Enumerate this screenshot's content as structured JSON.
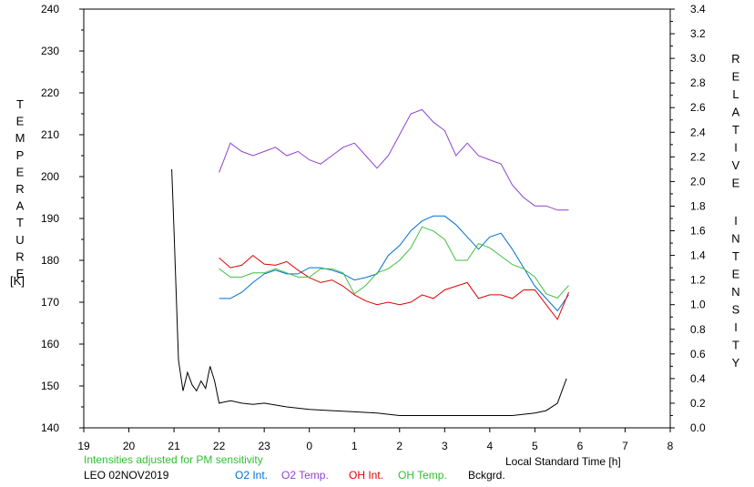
{
  "chart_data": {
    "type": "line",
    "left_axis_label": "TEMPERATURE",
    "left_axis_unit": "[K]",
    "right_axis_label": "RELATIVE INTENSITY",
    "x_axis_label": "Local Standard Time [h]",
    "x_ticks": [
      "19",
      "20",
      "21",
      "22",
      "23",
      "0",
      "1",
      "2",
      "3",
      "4",
      "5",
      "6",
      "7",
      "8"
    ],
    "y_left_ticks": [
      "140",
      "150",
      "160",
      "170",
      "180",
      "190",
      "200",
      "210",
      "220",
      "230",
      "240"
    ],
    "y_right_ticks": [
      "0.0",
      "0.2",
      "0.4",
      "0.6",
      "0.8",
      "1.0",
      "1.2",
      "1.4",
      "1.6",
      "1.8",
      "2.0",
      "2.2",
      "2.4",
      "2.6",
      "2.8",
      "3.0",
      "3.2",
      "3.4"
    ],
    "xlim": [
      19,
      32
    ],
    "ylim_left": [
      140,
      240
    ],
    "ylim_right": [
      0,
      3.4
    ],
    "note": "Intensities adjusted for PM sensitivity",
    "station": "LEO 02NOV2019",
    "series": [
      {
        "name": "O2 Int.",
        "axis": "right",
        "color": "#0070d0",
        "x": [
          22.0,
          22.25,
          22.5,
          22.75,
          23.0,
          23.25,
          23.5,
          23.75,
          24.0,
          24.25,
          24.5,
          24.75,
          25.0,
          25.25,
          25.5,
          25.75,
          26.0,
          26.25,
          26.5,
          26.75,
          27.0,
          27.25,
          27.5,
          27.75,
          28.0,
          28.25,
          28.5,
          28.75,
          29.0,
          29.25,
          29.5,
          29.75
        ],
        "values": [
          1.05,
          1.05,
          1.1,
          1.18,
          1.25,
          1.28,
          1.25,
          1.25,
          1.3,
          1.3,
          1.28,
          1.25,
          1.2,
          1.22,
          1.25,
          1.4,
          1.48,
          1.6,
          1.68,
          1.72,
          1.72,
          1.65,
          1.55,
          1.45,
          1.55,
          1.58,
          1.45,
          1.3,
          1.15,
          1.05,
          0.95,
          1.08
        ]
      },
      {
        "name": "O2 Temp.",
        "axis": "left",
        "color": "#9040d0",
        "x": [
          22.0,
          22.25,
          22.5,
          22.75,
          23.0,
          23.25,
          23.5,
          23.75,
          24.0,
          24.25,
          24.5,
          24.75,
          25.0,
          25.25,
          25.5,
          25.75,
          26.0,
          26.25,
          26.5,
          26.75,
          27.0,
          27.25,
          27.5,
          27.75,
          28.0,
          28.25,
          28.5,
          28.75,
          29.0,
          29.25,
          29.5,
          29.75
        ],
        "values": [
          201,
          208,
          206,
          205,
          206,
          207,
          205,
          206,
          204,
          203,
          205,
          207,
          208,
          205,
          202,
          205,
          210,
          215,
          216,
          213,
          211,
          205,
          208,
          205,
          204,
          203,
          198,
          195,
          193,
          193,
          192,
          192
        ]
      },
      {
        "name": "OH Int.",
        "axis": "right",
        "color": "#e00000",
        "x": [
          22.0,
          22.25,
          22.5,
          22.75,
          23.0,
          23.25,
          23.5,
          23.75,
          24.0,
          24.25,
          24.5,
          24.75,
          25.0,
          25.25,
          25.5,
          25.75,
          26.0,
          26.25,
          26.5,
          26.75,
          27.0,
          27.25,
          27.5,
          27.75,
          28.0,
          28.25,
          28.5,
          28.75,
          29.0,
          29.25,
          29.5,
          29.75
        ],
        "values": [
          1.38,
          1.3,
          1.32,
          1.4,
          1.33,
          1.32,
          1.35,
          1.28,
          1.22,
          1.18,
          1.2,
          1.15,
          1.08,
          1.03,
          1.0,
          1.02,
          1.0,
          1.02,
          1.08,
          1.05,
          1.12,
          1.15,
          1.18,
          1.05,
          1.08,
          1.08,
          1.05,
          1.12,
          1.12,
          1.0,
          0.88,
          1.1
        ]
      },
      {
        "name": "OH Temp.",
        "axis": "left",
        "color": "#40c040",
        "x": [
          22.0,
          22.25,
          22.5,
          22.75,
          23.0,
          23.25,
          23.5,
          23.75,
          24.0,
          24.25,
          24.5,
          24.75,
          25.0,
          25.25,
          25.5,
          25.75,
          26.0,
          26.25,
          26.5,
          26.75,
          27.0,
          27.25,
          27.5,
          27.75,
          28.0,
          28.25,
          28.5,
          28.75,
          29.0,
          29.25,
          29.5,
          29.75
        ],
        "values": [
          178,
          176,
          176,
          177,
          177,
          178,
          177,
          176,
          176,
          178,
          178,
          177,
          172,
          174,
          177,
          178,
          180,
          183,
          188,
          187,
          185,
          180,
          180,
          184,
          183,
          181,
          179,
          178,
          176,
          172,
          171,
          174
        ]
      },
      {
        "name": "Bckgrd.",
        "axis": "right",
        "color": "#000000",
        "x": [
          20.95,
          21.0,
          21.1,
          21.2,
          21.3,
          21.4,
          21.5,
          21.6,
          21.7,
          21.8,
          21.9,
          22.0,
          22.25,
          22.5,
          22.75,
          23.0,
          23.5,
          24.0,
          24.5,
          25.0,
          25.5,
          26.0,
          26.5,
          27.0,
          27.5,
          28.0,
          28.5,
          29.0,
          29.25,
          29.5,
          29.6,
          29.7
        ],
        "values": [
          2.1,
          1.6,
          0.55,
          0.3,
          0.45,
          0.35,
          0.3,
          0.38,
          0.32,
          0.5,
          0.38,
          0.2,
          0.22,
          0.2,
          0.19,
          0.2,
          0.17,
          0.15,
          0.14,
          0.13,
          0.12,
          0.1,
          0.1,
          0.1,
          0.1,
          0.1,
          0.1,
          0.12,
          0.14,
          0.2,
          0.3,
          0.4
        ]
      }
    ]
  }
}
